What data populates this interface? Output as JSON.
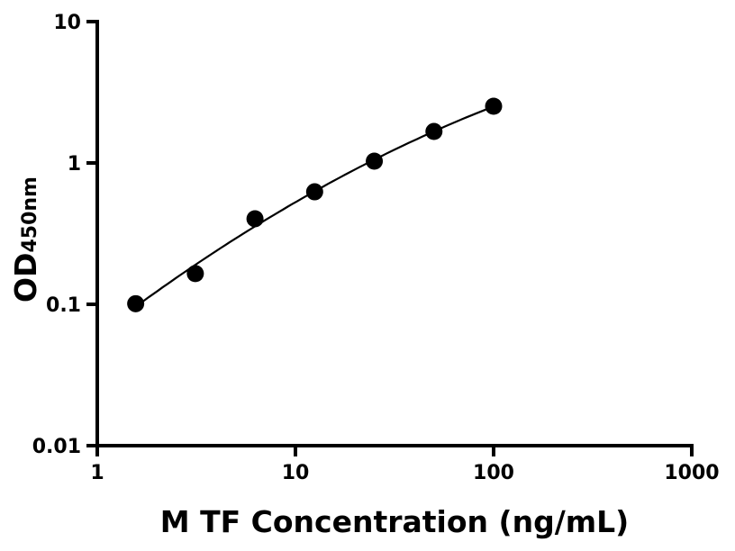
{
  "chart_data": {
    "type": "scatter",
    "title": "",
    "xlabel": "M TF Concentration (ng/mL)",
    "ylabel_main": "OD",
    "ylabel_sub": "450nm",
    "x_scale": "log",
    "y_scale": "log",
    "xlim": [
      1,
      1000
    ],
    "ylim": [
      0.01,
      10
    ],
    "x_ticks": [
      "1",
      "10",
      "100",
      "1000"
    ],
    "y_ticks": [
      "0.01",
      "0.1",
      "1",
      "10"
    ],
    "grid": false,
    "legend": "none",
    "fit_curve": true,
    "marker_color": "#000000",
    "line_color": "#000000",
    "points": [
      {
        "x": 1.5625,
        "y": 0.101
      },
      {
        "x": 3.125,
        "y": 0.165
      },
      {
        "x": 6.25,
        "y": 0.403
      },
      {
        "x": 12.5,
        "y": 0.625
      },
      {
        "x": 25,
        "y": 1.03
      },
      {
        "x": 50,
        "y": 1.67
      },
      {
        "x": 100,
        "y": 2.52
      }
    ]
  }
}
